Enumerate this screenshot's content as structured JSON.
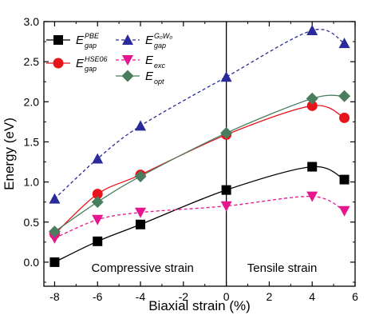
{
  "chart_data": {
    "type": "line",
    "xlabel": "Biaxial strain (%)",
    "ylabel": "Energy (eV)",
    "xlim": [
      -8.5,
      6
    ],
    "ylim": [
      -0.3,
      3.0
    ],
    "xticks": [
      -8,
      -6,
      -4,
      -2,
      0,
      2,
      4,
      6
    ],
    "yticks": [
      0.0,
      0.5,
      1.0,
      1.5,
      2.0,
      2.5,
      3.0
    ],
    "xtick_labels": [
      "-8",
      "-6",
      "-4",
      "-2",
      "0",
      "2",
      "4",
      "6"
    ],
    "ytick_labels": [
      "0.0",
      "0.5",
      "1.0",
      "1.5",
      "2.0",
      "2.5",
      "3.0"
    ],
    "divider_x": 0,
    "regions": [
      "Compressive strain",
      "Tensile strain"
    ],
    "legend_placement": "top-left",
    "series": [
      {
        "id": "pbe",
        "name": "E",
        "sup": "PBE",
        "sub": "gap",
        "color": "#000000",
        "marker": "square",
        "dash": "solid",
        "x": [
          -8,
          -6,
          -4,
          0,
          4,
          5.5
        ],
        "y": [
          0.0,
          0.26,
          0.47,
          0.9,
          1.19,
          1.03
        ]
      },
      {
        "id": "hse",
        "name": "E",
        "sup": "HSE06",
        "sub": "gap",
        "color": "#e8141b",
        "marker": "circle",
        "dash": "solid",
        "x": [
          -8,
          -6,
          -4,
          0,
          4,
          5.5
        ],
        "y": [
          0.35,
          0.85,
          1.09,
          1.59,
          1.95,
          1.8
        ]
      },
      {
        "id": "gw",
        "name": "E",
        "sup": "G₀W₀",
        "sub": "gap",
        "color": "#2a2a9a",
        "marker": "triangle-up",
        "dash": "dashed",
        "x": [
          -8,
          -6,
          -4,
          0,
          4,
          5.5
        ],
        "y": [
          0.79,
          1.29,
          1.7,
          2.31,
          2.89,
          2.73
        ]
      },
      {
        "id": "exc",
        "name": "E",
        "sup": "",
        "sub": "exc",
        "color": "#e6168f",
        "marker": "triangle-down",
        "dash": "dashed",
        "x": [
          -8,
          -6,
          -4,
          0,
          4,
          5.5
        ],
        "y": [
          0.3,
          0.53,
          0.62,
          0.7,
          0.82,
          0.64
        ]
      },
      {
        "id": "opt",
        "name": "E",
        "sup": "",
        "sub": "opt",
        "color": "#4a7d5e",
        "marker": "diamond",
        "dash": "solid",
        "x": [
          -8,
          -6,
          -4,
          0,
          4,
          5.5
        ],
        "y": [
          0.38,
          0.75,
          1.07,
          1.61,
          2.04,
          2.07
        ]
      }
    ]
  }
}
